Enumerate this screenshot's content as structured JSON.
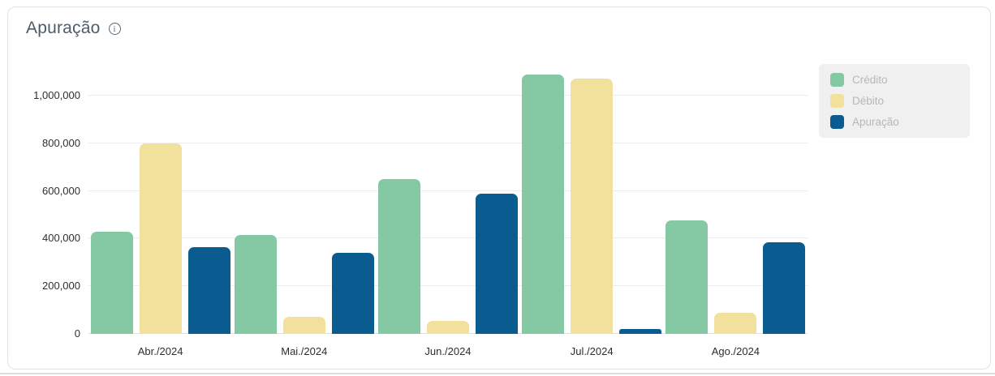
{
  "card": {
    "title": "Apuração",
    "info_icon": "info-circle-icon",
    "info_icon_glyph": "i"
  },
  "chart_data": {
    "type": "bar",
    "categories": [
      "Abr./2024",
      "Mai./2024",
      "Jun./2024",
      "Jul./2024",
      "Ago./2024"
    ],
    "series": [
      {
        "name": "Crédito",
        "color": "#85C8A4",
        "values": [
          430000,
          415000,
          650000,
          1090000,
          475000
        ]
      },
      {
        "name": "Débito",
        "color": "#F2E09D",
        "values": [
          800000,
          70000,
          55000,
          1070000,
          90000
        ]
      },
      {
        "name": "Apuração",
        "color": "#0A5C90",
        "values": [
          365000,
          340000,
          590000,
          20000,
          385000
        ]
      }
    ],
    "title": "Apuração",
    "xlabel": "",
    "ylabel": "",
    "ylim": [
      0,
      1100000
    ],
    "y_ticks": [
      0,
      200000,
      400000,
      600000,
      800000,
      1000000
    ],
    "grid": true,
    "legend_position": "top-right"
  },
  "colors": {
    "credito": "#85C8A4",
    "debito": "#F2E09D",
    "apuracao": "#0A5C90",
    "legend_bg": "#F0F0F1",
    "grid": "#ECECEC",
    "card_border": "#E3E3E3",
    "title_text": "#4E5B6B",
    "tick_text": "#2F2F2F"
  }
}
